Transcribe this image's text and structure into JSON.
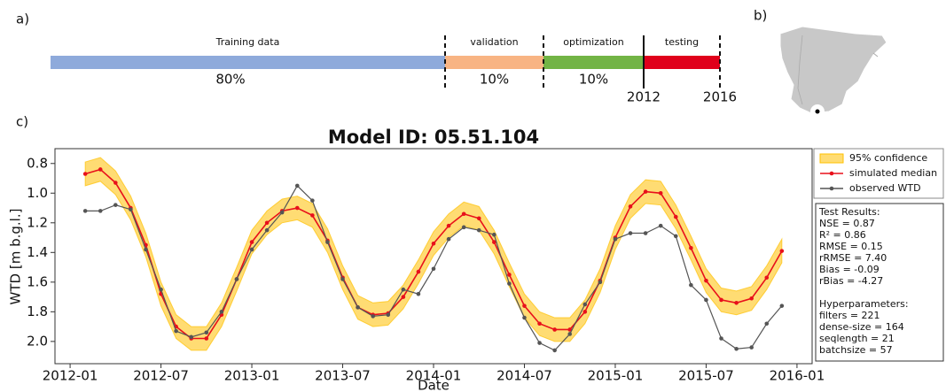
{
  "panel_labels": [
    "a)",
    "b)",
    "c)"
  ],
  "timeline": {
    "segments": [
      {
        "name": "Training data",
        "share": "80%",
        "color": "#8eaadb"
      },
      {
        "name": "validation",
        "share": "10%",
        "color": "#f8b483"
      },
      {
        "name": "optimization",
        "share": "10%",
        "color": "#72b445"
      },
      {
        "name": "testing",
        "color": "#e0001b"
      }
    ],
    "years": [
      "2012",
      "2016"
    ]
  },
  "chart_data": {
    "type": "line",
    "title": "Model ID: 05.51.104",
    "x_label": "Date",
    "y_label": "WTD [m b.g.l.]",
    "x": [
      "2012-02",
      "2012-03",
      "2012-04",
      "2012-05",
      "2012-06",
      "2012-07",
      "2012-08",
      "2012-09",
      "2012-10",
      "2012-11",
      "2012-12",
      "2013-01",
      "2013-02",
      "2013-03",
      "2013-04",
      "2013-05",
      "2013-06",
      "2013-07",
      "2013-08",
      "2013-09",
      "2013-10",
      "2013-11",
      "2013-12",
      "2014-01",
      "2014-02",
      "2014-03",
      "2014-04",
      "2014-05",
      "2014-06",
      "2014-07",
      "2014-08",
      "2014-09",
      "2014-10",
      "2014-11",
      "2014-12",
      "2015-01",
      "2015-02",
      "2015-03",
      "2015-04",
      "2015-05",
      "2015-06",
      "2015-07",
      "2015-08",
      "2015-09",
      "2015-10",
      "2015-11",
      "2015-12"
    ],
    "xlim": [
      "2011-12",
      "2016-02"
    ],
    "xticks": [
      "2012-01",
      "2012-07",
      "2013-01",
      "2013-07",
      "2014-01",
      "2014-07",
      "2015-01",
      "2015-07",
      "2016-01"
    ],
    "ylim": [
      2.15,
      0.7
    ],
    "yticks": [
      0.8,
      {
        "value": 1,
        "label": "1.0"
      },
      1.2,
      1.4,
      1.6,
      1.8,
      {
        "value": 2,
        "label": "2.0"
      }
    ],
    "series": [
      {
        "name": "95% confidence",
        "color": "#ffc000",
        "low": [
          0.79,
          0.76,
          0.85,
          1.02,
          1.27,
          1.6,
          1.82,
          1.9,
          1.9,
          1.74,
          1.5,
          1.25,
          1.12,
          1.04,
          1.02,
          1.07,
          1.24,
          1.49,
          1.69,
          1.74,
          1.73,
          1.62,
          1.45,
          1.26,
          1.14,
          1.06,
          1.09,
          1.25,
          1.47,
          1.68,
          1.8,
          1.84,
          1.84,
          1.72,
          1.51,
          1.22,
          1.01,
          0.91,
          0.92,
          1.08,
          1.29,
          1.51,
          1.64,
          1.66,
          1.63,
          1.49,
          1.31
        ],
        "high": [
          0.95,
          0.92,
          1.01,
          1.18,
          1.43,
          1.76,
          1.98,
          2.06,
          2.06,
          1.9,
          1.66,
          1.41,
          1.28,
          1.2,
          1.18,
          1.23,
          1.4,
          1.65,
          1.85,
          1.9,
          1.89,
          1.78,
          1.61,
          1.42,
          1.3,
          1.22,
          1.25,
          1.41,
          1.63,
          1.84,
          1.96,
          2.0,
          2.0,
          1.88,
          1.67,
          1.38,
          1.17,
          1.07,
          1.08,
          1.24,
          1.45,
          1.67,
          1.8,
          1.82,
          1.79,
          1.65,
          1.47
        ]
      },
      {
        "name": "simulated median",
        "color": "#e8101b",
        "values": [
          0.87,
          0.84,
          0.93,
          1.1,
          1.35,
          1.68,
          1.9,
          1.98,
          1.98,
          1.82,
          1.58,
          1.33,
          1.2,
          1.12,
          1.1,
          1.15,
          1.32,
          1.57,
          1.77,
          1.82,
          1.81,
          1.7,
          1.53,
          1.34,
          1.22,
          1.14,
          1.17,
          1.33,
          1.55,
          1.76,
          1.88,
          1.92,
          1.92,
          1.8,
          1.59,
          1.3,
          1.09,
          0.99,
          1.0,
          1.16,
          1.37,
          1.59,
          1.72,
          1.74,
          1.71,
          1.57,
          1.39
        ]
      },
      {
        "name": "observed WTD",
        "color": "#555555",
        "values": [
          1.12,
          1.12,
          1.08,
          1.11,
          1.38,
          1.65,
          1.93,
          1.97,
          1.94,
          1.8,
          1.58,
          1.38,
          1.25,
          1.13,
          0.95,
          1.05,
          1.33,
          1.58,
          1.77,
          1.83,
          1.82,
          1.65,
          1.68,
          1.51,
          1.31,
          1.23,
          1.25,
          1.28,
          1.61,
          1.84,
          2.01,
          2.06,
          1.95,
          1.75,
          1.6,
          1.31,
          1.27,
          1.27,
          1.22,
          1.29,
          1.62,
          1.72,
          1.98,
          2.05,
          2.04,
          1.88,
          1.76
        ]
      }
    ]
  },
  "info_box": {
    "test_results": [
      "Test Results:",
      "NSE = 0.87",
      "R²   = 0.86",
      "RMSE = 0.15",
      "rRMSE = 7.40",
      "Bias = -0.09",
      "rBias = -4.27"
    ],
    "hyperparameters": [
      "Hyperparameters:",
      "filters = 221",
      "dense-size = 164",
      "seqlength = 21",
      "batchsize = 57"
    ]
  }
}
